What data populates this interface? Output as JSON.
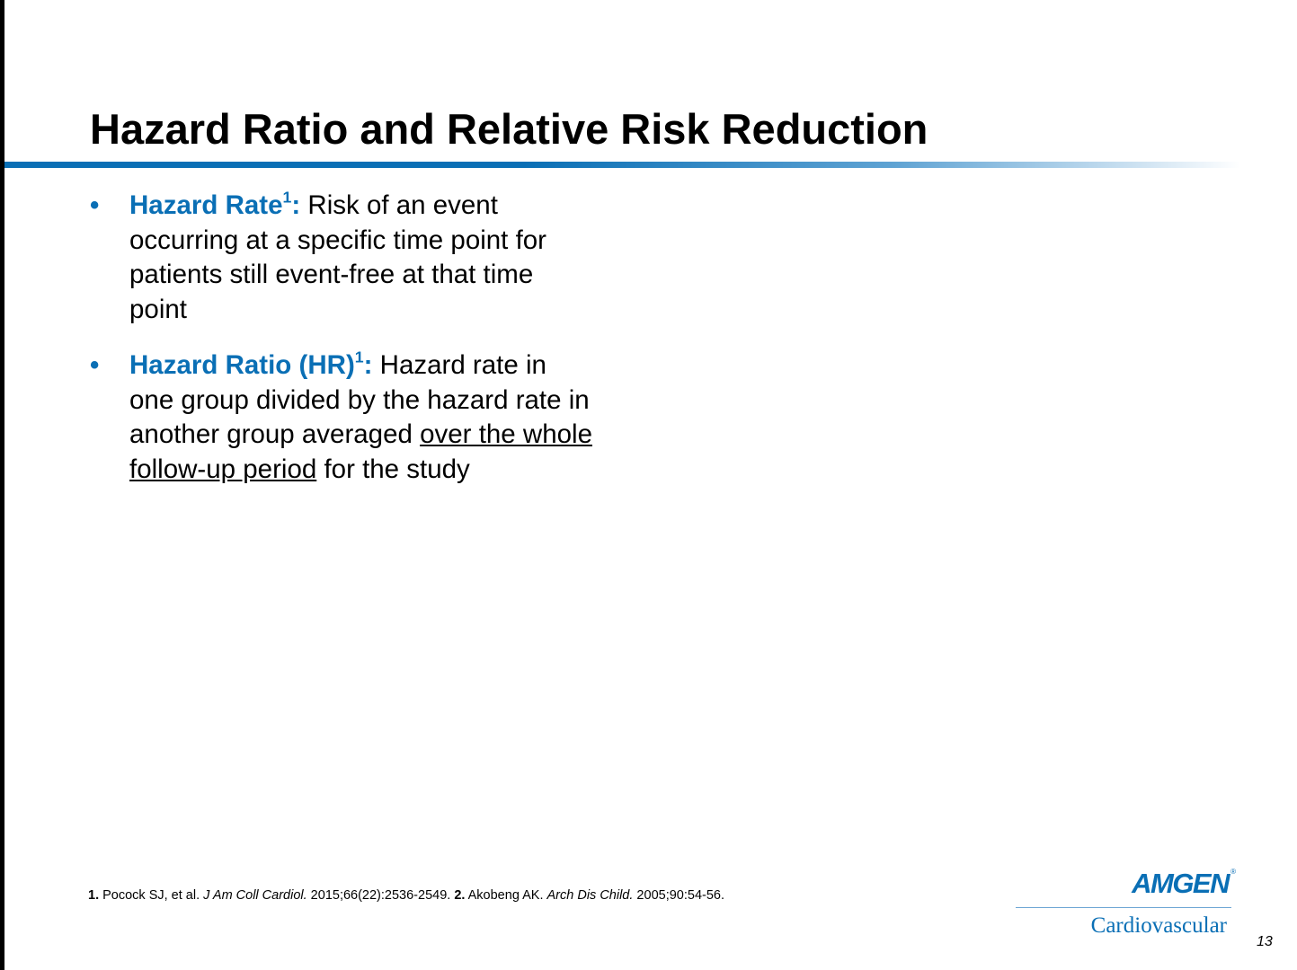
{
  "slide": {
    "title": "Hazard Ratio and Relative Risk Reduction",
    "bullets": [
      {
        "marker": "•",
        "term": "Hazard Rate",
        "term_sup": "1",
        "term_colon": ":",
        "text": " Risk of an event occurring at a specific time point for patients still event-free at that time point"
      },
      {
        "marker": "•",
        "term": "Hazard Ratio (HR)",
        "term_sup": "1",
        "term_colon": ":",
        "text_before": " Hazard rate in one group divided by the hazard rate in another group averaged ",
        "text_underlined": "over the whole follow-up period",
        "text_after": " for the study"
      }
    ],
    "references": {
      "ref1_num": "1.",
      "ref1_authors": " Pocock SJ, et al. ",
      "ref1_journal": "J Am Coll Cardiol.",
      "ref1_details": " 2015;66(22):2536-2549. ",
      "ref2_num": "2.",
      "ref2_authors": " Akobeng AK. ",
      "ref2_journal": "Arch Dis Child.",
      "ref2_details": " 2005;90:54-56."
    },
    "logo": {
      "brand": "AMGEN",
      "registered": "®",
      "subtitle": "Cardiovascular"
    },
    "page_number": "13",
    "colors": {
      "accent": "#0a6fb5",
      "text": "#000000",
      "background": "#ffffff"
    }
  }
}
